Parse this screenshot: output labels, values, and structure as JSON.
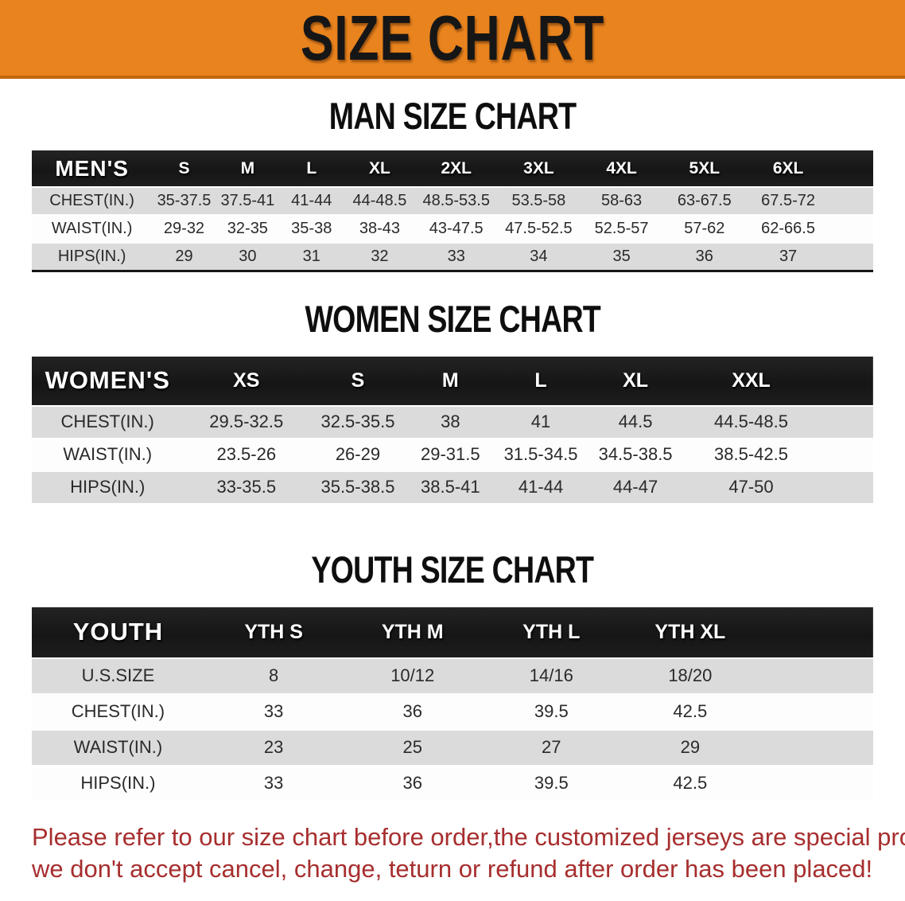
{
  "banner": {
    "title": "SIZE CHART",
    "bg_color": "#E8831E",
    "border_color": "#C2670F"
  },
  "colors": {
    "header_bar": "#191919",
    "row_gray": "#DBDBDB",
    "row_white": "#FDFDFD",
    "footnote_red": "#A72E2E",
    "text_dark": "#2A2A2A"
  },
  "chart_data": [
    {
      "type": "table",
      "title": "MAN SIZE CHART",
      "header_label": "MEN'S",
      "columns": [
        "S",
        "M",
        "L",
        "XL",
        "2XL",
        "3XL",
        "4XL",
        "5XL",
        "6XL"
      ],
      "rows": [
        {
          "label": "CHEST(IN.)",
          "values": [
            "35-37.5",
            "37.5-41",
            "41-44",
            "44-48.5",
            "48.5-53.5",
            "53.5-58",
            "58-63",
            "63-67.5",
            "67.5-72"
          ]
        },
        {
          "label": "WAIST(IN.)",
          "values": [
            "29-32",
            "32-35",
            "35-38",
            "38-43",
            "43-47.5",
            "47.5-52.5",
            "52.5-57",
            "57-62",
            "62-66.5"
          ]
        },
        {
          "label": "HIPS(IN.)",
          "values": [
            "29",
            "30",
            "31",
            "32",
            "33",
            "34",
            "35",
            "36",
            "37"
          ]
        }
      ]
    },
    {
      "type": "table",
      "title": "WOMEN SIZE CHART",
      "header_label": "WOMEN'S",
      "columns": [
        "XS",
        "S",
        "M",
        "L",
        "XL",
        "XXL"
      ],
      "rows": [
        {
          "label": "CHEST(IN.)",
          "values": [
            "29.5-32.5",
            "32.5-35.5",
            "38",
            "41",
            "44.5",
            "44.5-48.5"
          ]
        },
        {
          "label": "WAIST(IN.)",
          "values": [
            "23.5-26",
            "26-29",
            "29-31.5",
            "31.5-34.5",
            "34.5-38.5",
            "38.5-42.5"
          ]
        },
        {
          "label": "HIPS(IN.)",
          "values": [
            "33-35.5",
            "35.5-38.5",
            "38.5-41",
            "41-44",
            "44-47",
            "47-50"
          ]
        }
      ]
    },
    {
      "type": "table",
      "title": "YOUTH SIZE CHART",
      "header_label": "YOUTH",
      "columns": [
        "YTH S",
        "YTH M",
        "YTH L",
        "YTH XL"
      ],
      "rows": [
        {
          "label": "U.S.SIZE",
          "values": [
            "8",
            "10/12",
            "14/16",
            "18/20"
          ]
        },
        {
          "label": "CHEST(IN.)",
          "values": [
            "33",
            "36",
            "39.5",
            "42.5"
          ]
        },
        {
          "label": "WAIST(IN.)",
          "values": [
            "23",
            "25",
            "27",
            "29"
          ]
        },
        {
          "label": "HIPS(IN.)",
          "values": [
            "33",
            "36",
            "39.5",
            "42.5"
          ]
        }
      ]
    }
  ],
  "footnote": {
    "lines": [
      "Please refer to our size chart before order,the customized jerseys are special products,",
      "we don't accept cancel, change, teturn or refund after order has been placed!"
    ]
  }
}
